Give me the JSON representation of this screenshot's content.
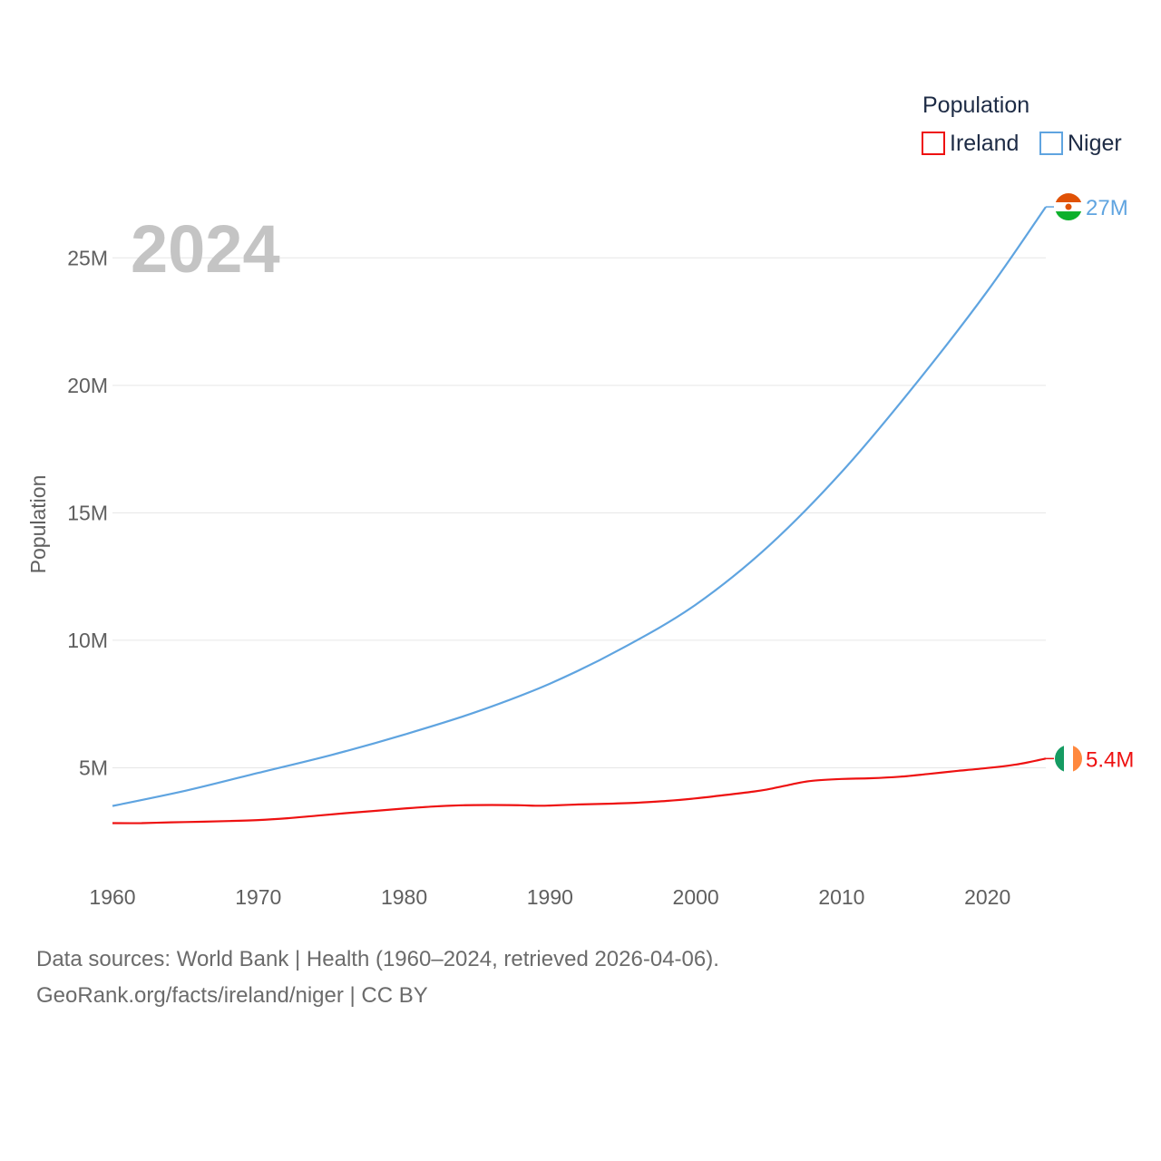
{
  "chart_data": {
    "type": "line",
    "year_label": "2024",
    "ylabel": "Population",
    "legend_title": "Population",
    "x_ticks": [
      1960,
      1970,
      1980,
      1990,
      2000,
      2010,
      2020
    ],
    "x_tick_labels": [
      "1960",
      "1970",
      "1980",
      "1990",
      "2000",
      "2010",
      "2020"
    ],
    "y_ticks": [
      5000000,
      10000000,
      15000000,
      20000000,
      25000000
    ],
    "y_tick_labels": [
      "5M",
      "10M",
      "15M",
      "20M",
      "25M"
    ],
    "xlim": [
      1960,
      2024
    ],
    "ylim": [
      0,
      27500000
    ],
    "series": [
      {
        "name": "Ireland",
        "color": "#ee1111",
        "end_label": "5.4M",
        "flag": "ireland-flag-icon",
        "x": [
          1960,
          1962,
          1964,
          1966,
          1968,
          1970,
          1972,
          1974,
          1976,
          1978,
          1980,
          1982,
          1984,
          1986,
          1988,
          1989,
          1990,
          1992,
          1994,
          1996,
          1998,
          2000,
          2002,
          2004,
          2005,
          2006,
          2007,
          2008,
          2010,
          2012,
          2014,
          2016,
          2018,
          2020,
          2022,
          2024
        ],
        "values": [
          2830000,
          2830000,
          2860000,
          2880000,
          2910000,
          2950000,
          3020000,
          3120000,
          3220000,
          3310000,
          3400000,
          3480000,
          3530000,
          3540000,
          3530000,
          3510000,
          3520000,
          3560000,
          3590000,
          3630000,
          3700000,
          3800000,
          3930000,
          4070000,
          4160000,
          4280000,
          4400000,
          4490000,
          4560000,
          4590000,
          4650000,
          4760000,
          4880000,
          4990000,
          5130000,
          5360000
        ]
      },
      {
        "name": "Niger",
        "color": "#5fa4e0",
        "end_label": "27M",
        "flag": "niger-flag-icon",
        "x": [
          1960,
          1965,
          1970,
          1975,
          1980,
          1985,
          1990,
          1995,
          2000,
          2005,
          2010,
          2015,
          2020,
          2024
        ],
        "values": [
          3500000,
          4100000,
          4800000,
          5500000,
          6300000,
          7200000,
          8300000,
          9700000,
          11400000,
          13700000,
          16600000,
          20000000,
          23700000,
          27000000
        ]
      }
    ]
  },
  "source": {
    "line1": "Data sources: World Bank | Health (1960–2024, retrieved 2026-04-06).",
    "line2": "GeoRank.org/facts/ireland/niger | CC BY"
  }
}
